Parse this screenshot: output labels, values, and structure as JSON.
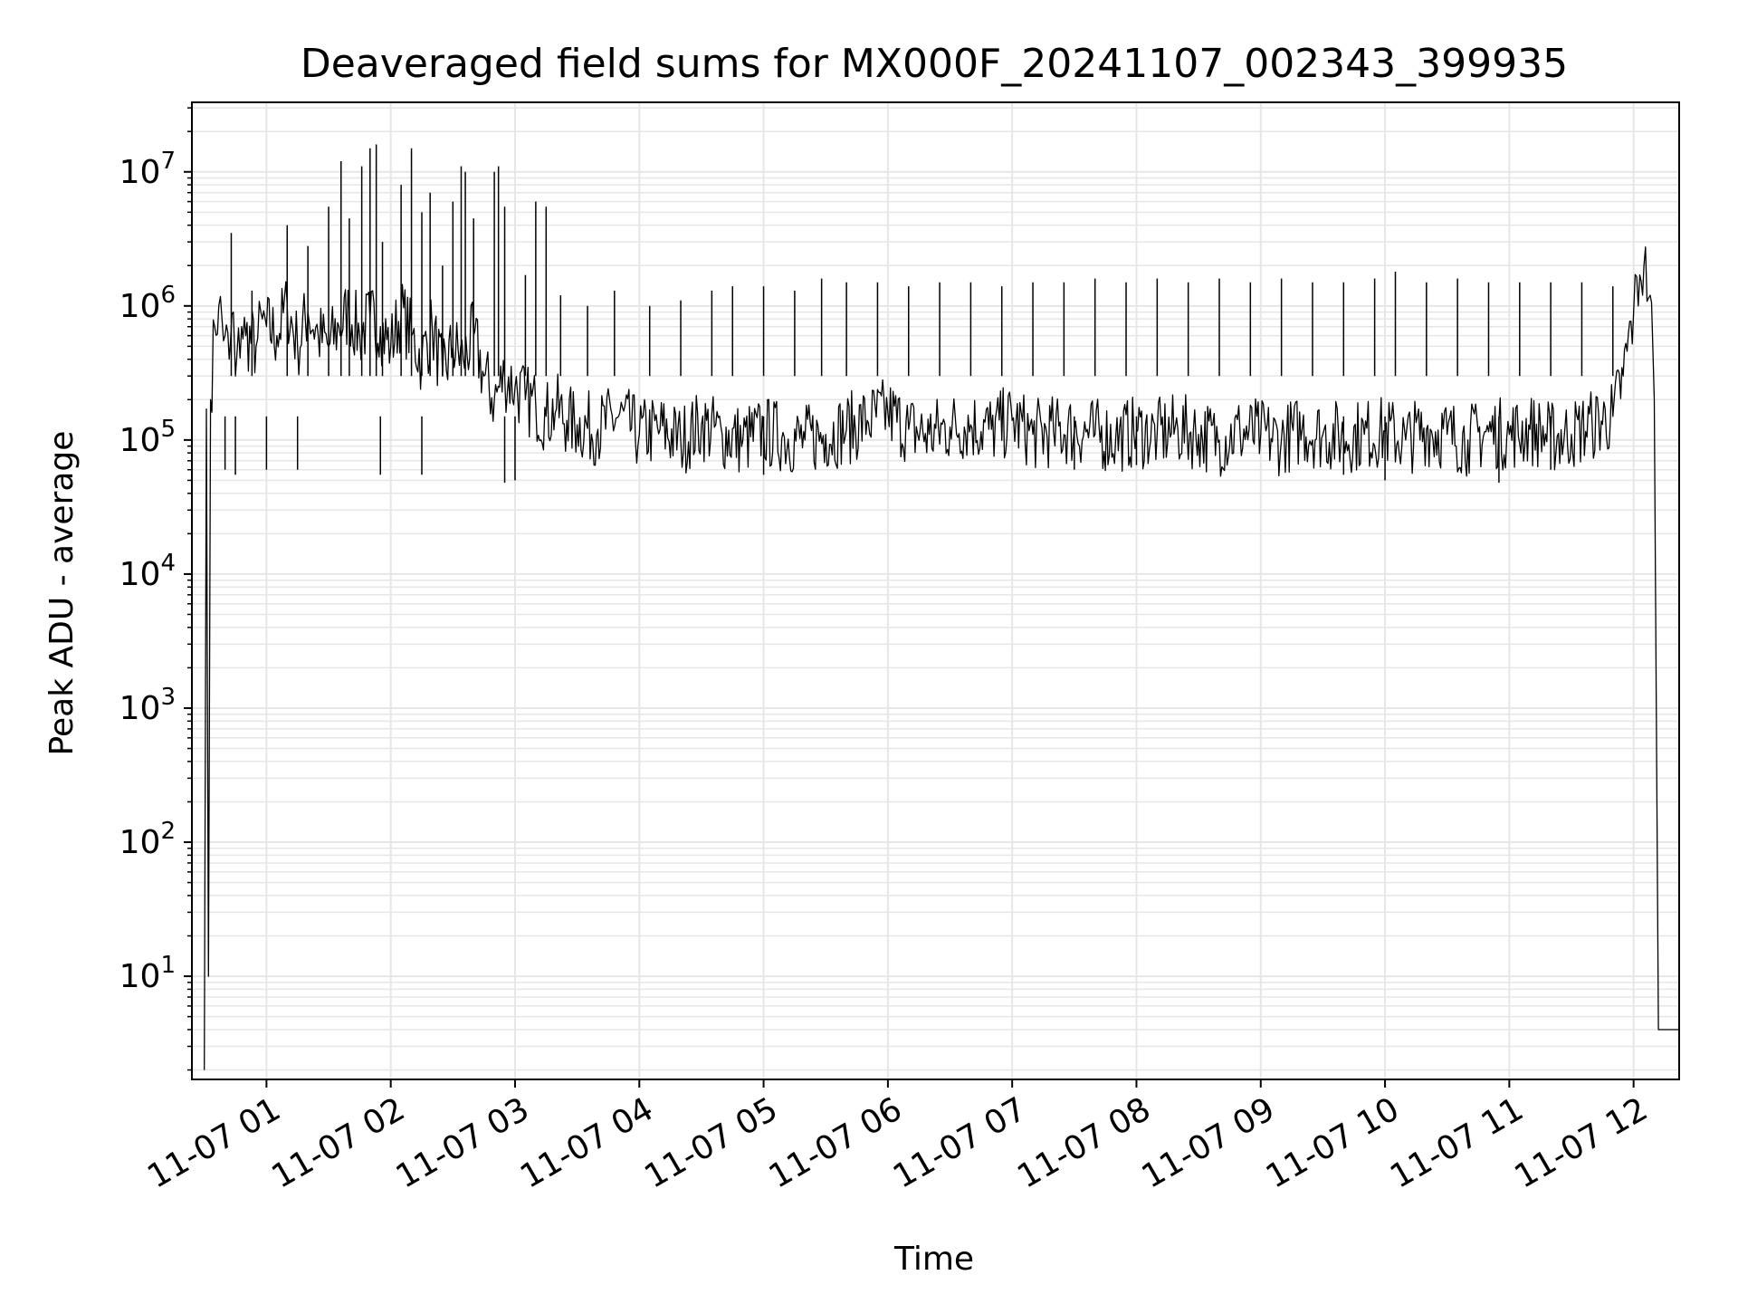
{
  "chart_data": {
    "type": "line",
    "title": "Deaveraged field sums for MX000F_20241107_002343_399935",
    "xlabel": "Time",
    "ylabel": "Peak ADU - average",
    "yscale": "log",
    "ylim": [
      1.7,
      33000000.0
    ],
    "xlim": [
      "11-07 00:24",
      "11-07 12:22"
    ],
    "grid": true,
    "grid_color": "#e6e6e6",
    "line_color": "#000000",
    "x_ticks": [
      "11-07 01",
      "11-07 02",
      "11-07 03",
      "11-07 04",
      "11-07 05",
      "11-07 06",
      "11-07 07",
      "11-07 08",
      "11-07 09",
      "11-07 10",
      "11-07 11",
      "11-07 12"
    ],
    "y_ticks": [
      {
        "base": "10",
        "exp": "1",
        "value": 10
      },
      {
        "base": "10",
        "exp": "2",
        "value": 100
      },
      {
        "base": "10",
        "exp": "3",
        "value": 1000
      },
      {
        "base": "10",
        "exp": "4",
        "value": 10000
      },
      {
        "base": "10",
        "exp": "5",
        "value": 100000
      },
      {
        "base": "10",
        "exp": "6",
        "value": 1000000
      },
      {
        "base": "10",
        "exp": "7",
        "value": 10000000
      }
    ],
    "series": [
      {
        "x": [
          "00:30",
          "00:31",
          "00:32",
          "00:33",
          "00:35",
          "00:37",
          "00:40",
          "00:42",
          "00:44",
          "00:45",
          "00:48",
          "00:50",
          "00:55",
          "00:58",
          "01:00",
          "01:05",
          "01:10",
          "01:15",
          "01:20",
          "01:25",
          "01:30",
          "01:35",
          "01:40",
          "01:45",
          "01:50",
          "01:55",
          "02:00",
          "02:05",
          "02:10",
          "02:15",
          "02:20",
          "02:25",
          "02:30",
          "02:35",
          "02:40",
          "02:45",
          "02:50",
          "02:55",
          "03:00",
          "03:05",
          "03:10",
          "03:15",
          "03:20",
          "03:25",
          "03:30",
          "03:40",
          "03:50",
          "04:00",
          "04:10",
          "04:20",
          "04:30",
          "04:40",
          "04:50",
          "05:00",
          "05:10",
          "05:20",
          "05:30",
          "05:40",
          "05:50",
          "06:00",
          "06:10",
          "06:20",
          "06:30",
          "06:40",
          "06:50",
          "07:00",
          "07:10",
          "07:20",
          "07:30",
          "07:40",
          "07:50",
          "08:00",
          "08:10",
          "08:20",
          "08:30",
          "08:40",
          "08:50",
          "09:00",
          "09:10",
          "09:20",
          "09:30",
          "09:40",
          "09:50",
          "10:00",
          "10:10",
          "10:20",
          "10:30",
          "10:40",
          "10:50",
          "11:00",
          "11:10",
          "11:20",
          "11:30",
          "11:40",
          "11:50",
          "11:55",
          "12:00",
          "12:03",
          "12:05",
          "12:08",
          "12:10",
          "12:12",
          "12:14",
          "12:22"
        ],
        "values": [
          2,
          170000,
          10,
          200000,
          700000,
          1000000,
          600000,
          400000,
          900000,
          300000,
          700000,
          600000,
          500000,
          800000,
          700000,
          600000,
          1000000,
          500000,
          900000,
          600000,
          500000,
          700000,
          900000,
          600000,
          800000,
          700000,
          500000,
          900000,
          600000,
          400000,
          700000,
          300000,
          500000,
          400000,
          600000,
          300000,
          200000,
          300000,
          250000,
          200000,
          180000,
          150000,
          170000,
          140000,
          130000,
          120000,
          150000,
          110000,
          120000,
          100000,
          130000,
          110000,
          100000,
          115000,
          105000,
          100000,
          110000,
          120000,
          140000,
          160000,
          120000,
          110000,
          125000,
          130000,
          120000,
          140000,
          110000,
          115000,
          120000,
          110000,
          105000,
          115000,
          110000,
          120000,
          110000,
          100000,
          115000,
          110000,
          100000,
          120000,
          110000,
          105000,
          110000,
          115000,
          100000,
          120000,
          110000,
          100000,
          115000,
          110000,
          120000,
          105000,
          110000,
          130000,
          150000,
          300000,
          900000,
          1700000,
          2000000,
          1200000,
          200000,
          4,
          4,
          4
        ]
      }
    ],
    "spikes": [
      {
        "t": "00:43",
        "v": 3500000
      },
      {
        "t": "00:53",
        "v": 1300000
      },
      {
        "t": "01:10",
        "v": 4000000
      },
      {
        "t": "01:20",
        "v": 2800000
      },
      {
        "t": "01:30",
        "v": 5500000
      },
      {
        "t": "01:36",
        "v": 12000000
      },
      {
        "t": "01:40",
        "v": 4500000
      },
      {
        "t": "01:46",
        "v": 11000000
      },
      {
        "t": "01:50",
        "v": 15000000
      },
      {
        "t": "01:53",
        "v": 16000000
      },
      {
        "t": "01:56",
        "v": 3000000
      },
      {
        "t": "02:05",
        "v": 8000000
      },
      {
        "t": "02:10",
        "v": 15000000
      },
      {
        "t": "02:15",
        "v": 5000000
      },
      {
        "t": "02:19",
        "v": 7000000
      },
      {
        "t": "02:25",
        "v": 2000000
      },
      {
        "t": "02:30",
        "v": 6000000
      },
      {
        "t": "02:34",
        "v": 11000000
      },
      {
        "t": "02:36",
        "v": 10000000
      },
      {
        "t": "02:40",
        "v": 4500000
      },
      {
        "t": "02:50",
        "v": 10000000
      },
      {
        "t": "02:52",
        "v": 11000000
      },
      {
        "t": "02:55",
        "v": 5500000
      },
      {
        "t": "03:05",
        "v": 1700000
      },
      {
        "t": "03:10",
        "v": 6000000
      },
      {
        "t": "03:15",
        "v": 5500000
      },
      {
        "t": "03:22",
        "v": 1200000
      },
      {
        "t": "03:35",
        "v": 1000000
      },
      {
        "t": "03:48",
        "v": 1300000
      },
      {
        "t": "04:05",
        "v": 1000000
      },
      {
        "t": "04:20",
        "v": 1100000
      },
      {
        "t": "04:35",
        "v": 1300000
      },
      {
        "t": "04:45",
        "v": 1400000
      },
      {
        "t": "05:00",
        "v": 1400000
      },
      {
        "t": "05:15",
        "v": 1300000
      },
      {
        "t": "05:28",
        "v": 1600000
      },
      {
        "t": "05:40",
        "v": 1500000
      },
      {
        "t": "05:55",
        "v": 1500000
      },
      {
        "t": "06:10",
        "v": 1400000
      },
      {
        "t": "06:25",
        "v": 1500000
      },
      {
        "t": "06:40",
        "v": 1500000
      },
      {
        "t": "06:55",
        "v": 1400000
      },
      {
        "t": "07:10",
        "v": 1500000
      },
      {
        "t": "07:25",
        "v": 1500000
      },
      {
        "t": "07:40",
        "v": 1600000
      },
      {
        "t": "07:55",
        "v": 1500000
      },
      {
        "t": "08:10",
        "v": 1600000
      },
      {
        "t": "08:25",
        "v": 1500000
      },
      {
        "t": "08:40",
        "v": 1600000
      },
      {
        "t": "08:55",
        "v": 1500000
      },
      {
        "t": "09:10",
        "v": 1600000
      },
      {
        "t": "09:25",
        "v": 1500000
      },
      {
        "t": "09:40",
        "v": 1500000
      },
      {
        "t": "09:55",
        "v": 1600000
      },
      {
        "t": "10:05",
        "v": 1800000
      },
      {
        "t": "10:20",
        "v": 1500000
      },
      {
        "t": "10:35",
        "v": 1600000
      },
      {
        "t": "10:50",
        "v": 1500000
      },
      {
        "t": "11:05",
        "v": 1500000
      },
      {
        "t": "11:20",
        "v": 1500000
      },
      {
        "t": "11:35",
        "v": 1500000
      },
      {
        "t": "11:50",
        "v": 1400000
      }
    ],
    "dips": [
      {
        "t": "00:40",
        "v": 60000
      },
      {
        "t": "00:45",
        "v": 55000
      },
      {
        "t": "01:00",
        "v": 60000
      },
      {
        "t": "01:15",
        "v": 60000
      },
      {
        "t": "01:55",
        "v": 55000
      },
      {
        "t": "02:15",
        "v": 55000
      },
      {
        "t": "02:55",
        "v": 48000
      },
      {
        "t": "03:00",
        "v": 50000
      },
      {
        "t": "05:00",
        "v": 55000
      },
      {
        "t": "07:30",
        "v": 60000
      },
      {
        "t": "08:00",
        "v": 65000
      },
      {
        "t": "09:40",
        "v": 55000
      },
      {
        "t": "10:00",
        "v": 50000
      },
      {
        "t": "10:55",
        "v": 48000
      },
      {
        "t": "11:20",
        "v": 60000
      }
    ]
  }
}
